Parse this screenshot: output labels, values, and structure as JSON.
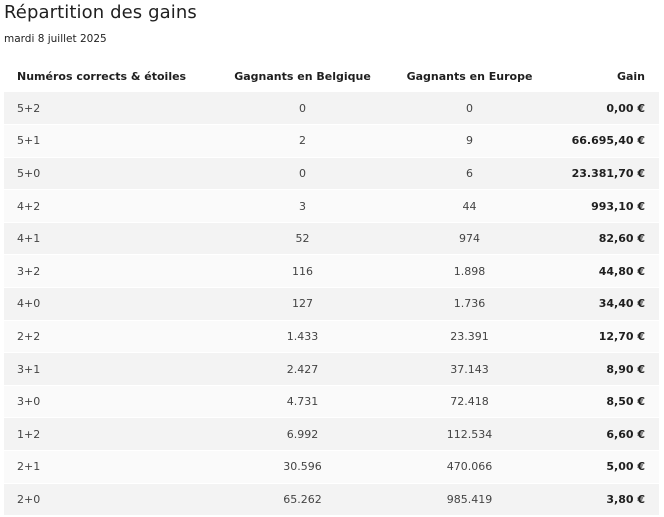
{
  "header": {
    "title": "Répartition des gains",
    "date": "mardi 8 juillet 2025"
  },
  "table": {
    "columns": [
      "Numéros corrects & étoiles",
      "Gagnants en Belgique",
      "Gagnants en Europe",
      "Gain"
    ],
    "rows": [
      {
        "combo": "5+2",
        "belgium": "0",
        "europe": "0",
        "gain": "0,00 €"
      },
      {
        "combo": "5+1",
        "belgium": "2",
        "europe": "9",
        "gain": "66.695,40 €"
      },
      {
        "combo": "5+0",
        "belgium": "0",
        "europe": "6",
        "gain": "23.381,70 €"
      },
      {
        "combo": "4+2",
        "belgium": "3",
        "europe": "44",
        "gain": "993,10 €"
      },
      {
        "combo": "4+1",
        "belgium": "52",
        "europe": "974",
        "gain": "82,60 €"
      },
      {
        "combo": "3+2",
        "belgium": "116",
        "europe": "1.898",
        "gain": "44,80 €"
      },
      {
        "combo": "4+0",
        "belgium": "127",
        "europe": "1.736",
        "gain": "34,40 €"
      },
      {
        "combo": "2+2",
        "belgium": "1.433",
        "europe": "23.391",
        "gain": "12,70 €"
      },
      {
        "combo": "3+1",
        "belgium": "2.427",
        "europe": "37.143",
        "gain": "8,90 €"
      },
      {
        "combo": "3+0",
        "belgium": "4.731",
        "europe": "72.418",
        "gain": "8,50 €"
      },
      {
        "combo": "1+2",
        "belgium": "6.992",
        "europe": "112.534",
        "gain": "6,60 €"
      },
      {
        "combo": "2+1",
        "belgium": "30.596",
        "europe": "470.066",
        "gain": "5,00 €"
      },
      {
        "combo": "2+0",
        "belgium": "65.262",
        "europe": "985.419",
        "gain": "3,80 €"
      }
    ]
  }
}
